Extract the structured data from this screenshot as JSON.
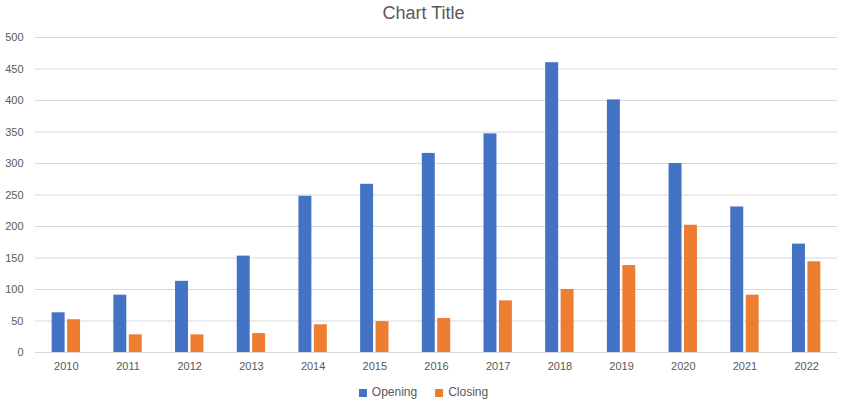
{
  "chart_data": {
    "type": "bar",
    "title": "Chart Title",
    "categories": [
      "2010",
      "2011",
      "2012",
      "2013",
      "2014",
      "2015",
      "2016",
      "2017",
      "2018",
      "2019",
      "2020",
      "2021",
      "2022"
    ],
    "series": [
      {
        "name": "Opening",
        "color": "#4472c4",
        "values": [
          63,
          91,
          113,
          153,
          248,
          267,
          316,
          347,
          460,
          401,
          300,
          231,
          172
        ]
      },
      {
        "name": "Closing",
        "color": "#ed7d31",
        "values": [
          52,
          28,
          28,
          30,
          44,
          49,
          54,
          82,
          100,
          138,
          202,
          91,
          144
        ]
      }
    ],
    "ylim": [
      0,
      500
    ],
    "yticks": [
      0,
      50,
      100,
      150,
      200,
      250,
      300,
      350,
      400,
      450,
      500
    ],
    "grid": true,
    "legend": "bottom"
  }
}
